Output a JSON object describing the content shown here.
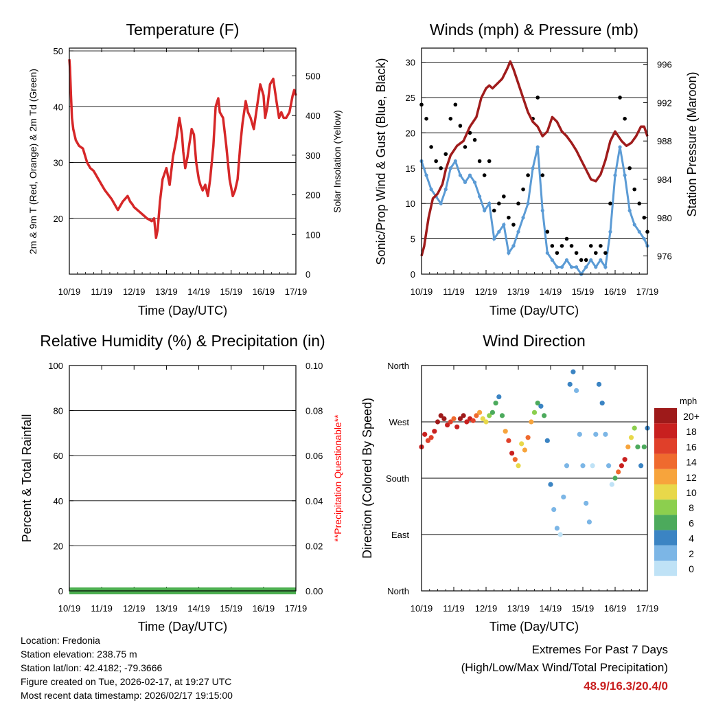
{
  "colors": {
    "temp": "#d62728",
    "wind": "#5b9bd5",
    "gust": "#000000",
    "pressure": "#a01c1c",
    "rh": "#4caf50",
    "questionable": "#ff0000",
    "extremes": "#c81e1e"
  },
  "x_tick_labels": [
    "10/19",
    "11/19",
    "12/19",
    "13/19",
    "14/19",
    "15/19",
    "16/19",
    "17/19"
  ],
  "x_axis_label": "Time (Day/UTC)",
  "chart_data": [
    {
      "id": "temperature",
      "type": "line",
      "title": "Temperature (F)",
      "xlabel": "Time (Day/UTC)",
      "ylabel": "2m & 9m T (Red, Orange) & 2m Td (Green)",
      "ylabel_right": "Solar Insolation (Yellow)",
      "xlim": [
        0,
        7
      ],
      "ylim": [
        10,
        50.5
      ],
      "yticks": [
        20,
        30,
        40,
        50
      ],
      "ylim_right": [
        0,
        570
      ],
      "yticks_right": [
        0,
        100,
        200,
        300,
        400,
        500
      ],
      "series": [
        {
          "name": "2m T",
          "x": [
            0,
            0.02,
            0.05,
            0.08,
            0.12,
            0.2,
            0.3,
            0.42,
            0.55,
            0.65,
            0.75,
            0.9,
            1.0,
            1.1,
            1.3,
            1.5,
            1.65,
            1.8,
            1.88,
            1.95,
            2.0,
            2.2,
            2.4,
            2.55,
            2.62,
            2.68,
            2.73,
            2.8,
            2.88,
            3.0,
            3.1,
            3.2,
            3.3,
            3.4,
            3.48,
            3.52,
            3.58,
            3.65,
            3.7,
            3.78,
            3.85,
            3.92,
            4.0,
            4.05,
            4.12,
            4.2,
            4.28,
            4.35,
            4.45,
            4.52,
            4.6,
            4.65,
            4.75,
            4.85,
            4.95,
            5.05,
            5.12,
            5.2,
            5.28,
            5.35,
            5.45,
            5.52,
            5.6,
            5.7,
            5.8,
            5.9,
            6.0,
            6.05,
            6.12,
            6.2,
            6.3,
            6.4,
            6.48,
            6.55,
            6.62,
            6.7,
            6.8,
            6.9,
            6.95,
            7.0
          ],
          "values": [
            48.5,
            47,
            42,
            38,
            36,
            34,
            33,
            32.5,
            30,
            29,
            28.5,
            27,
            26,
            25,
            23.5,
            21.5,
            23,
            24,
            23,
            22.5,
            22,
            21,
            20,
            19.5,
            20,
            16.5,
            18,
            23,
            27,
            29,
            26,
            31,
            34,
            38,
            35,
            32,
            29,
            31,
            33,
            36,
            35,
            30,
            27,
            26,
            25,
            26,
            24,
            27,
            33,
            40,
            41.5,
            39,
            38,
            33,
            27,
            24,
            25,
            27,
            33,
            37,
            41,
            39,
            38,
            36,
            40,
            44,
            42,
            38,
            40,
            44,
            45,
            41,
            38,
            39,
            38,
            38,
            39,
            42,
            43,
            42
          ]
        }
      ]
    },
    {
      "id": "winds",
      "type": "scatter",
      "title": "Winds (mph) & Pressure (mb)",
      "xlabel": "Time (Day/UTC)",
      "ylabel": "Sonic/Prop Wind & Gust (Blue, Black)",
      "ylabel_right": "Station Pressure (Maroon)",
      "xlim": [
        0,
        7
      ],
      "ylim": [
        0,
        32
      ],
      "yticks": [
        0,
        5,
        10,
        15,
        20,
        25,
        30
      ],
      "ylim_right": [
        974.1,
        997.7
      ],
      "yticks_right": [
        976,
        980,
        984,
        988,
        992,
        996
      ],
      "series": [
        {
          "name": "Gust",
          "x": [
            0,
            0.15,
            0.3,
            0.45,
            0.6,
            0.75,
            0.9,
            1.05,
            1.2,
            1.35,
            1.5,
            1.65,
            1.8,
            1.95,
            2.1,
            2.25,
            2.4,
            2.55,
            2.7,
            2.85,
            3.0,
            3.15,
            3.3,
            3.45,
            3.6,
            3.75,
            3.9,
            4.05,
            4.2,
            4.35,
            4.5,
            4.65,
            4.8,
            4.95,
            5.1,
            5.25,
            5.4,
            5.55,
            5.7,
            5.85,
            6.0,
            6.15,
            6.3,
            6.45,
            6.6,
            6.75,
            6.9,
            7.0
          ],
          "values": [
            24,
            22,
            18,
            16,
            15,
            17,
            22,
            24,
            21,
            18,
            20,
            19,
            16,
            14,
            16,
            9,
            10,
            11,
            8,
            7,
            10,
            12,
            14,
            22,
            25,
            14,
            6,
            4,
            3,
            4,
            5,
            4,
            3,
            2,
            2,
            4,
            3,
            4,
            3,
            10,
            20,
            25,
            22,
            15,
            12,
            10,
            8,
            6
          ]
        },
        {
          "name": "Wind",
          "x": [
            0,
            0.15,
            0.3,
            0.45,
            0.6,
            0.75,
            0.9,
            1.05,
            1.2,
            1.35,
            1.5,
            1.65,
            1.8,
            1.95,
            2.1,
            2.25,
            2.4,
            2.55,
            2.7,
            2.85,
            3.0,
            3.15,
            3.3,
            3.45,
            3.6,
            3.75,
            3.9,
            4.05,
            4.2,
            4.35,
            4.5,
            4.65,
            4.8,
            4.95,
            5.1,
            5.25,
            5.4,
            5.55,
            5.7,
            5.85,
            6.0,
            6.15,
            6.3,
            6.45,
            6.6,
            6.75,
            6.9,
            7.0
          ],
          "values": [
            16,
            14,
            12,
            11,
            10,
            12,
            15,
            16,
            14,
            13,
            14,
            13,
            11,
            9,
            10,
            5,
            6,
            7,
            3,
            4,
            6,
            8,
            10,
            15,
            18,
            9,
            3,
            2,
            1,
            1,
            2,
            1,
            1,
            0,
            1,
            2,
            1,
            2,
            1,
            6,
            14,
            18,
            14,
            9,
            7,
            6,
            5,
            4
          ]
        },
        {
          "name": "Station Pressure",
          "axis": "right",
          "x": [
            0,
            0.08,
            0.15,
            0.22,
            0.35,
            0.5,
            0.65,
            0.75,
            0.9,
            1.1,
            1.3,
            1.5,
            1.7,
            1.85,
            2.0,
            2.1,
            2.2,
            2.35,
            2.5,
            2.65,
            2.75,
            2.85,
            3.0,
            3.15,
            3.3,
            3.45,
            3.6,
            3.75,
            3.9,
            4.05,
            4.2,
            4.35,
            4.5,
            4.65,
            4.8,
            4.95,
            5.1,
            5.25,
            5.4,
            5.55,
            5.7,
            5.85,
            6.0,
            6.1,
            6.2,
            6.35,
            6.5,
            6.65,
            6.8,
            6.9,
            7.0
          ],
          "values": [
            976,
            977,
            978.5,
            980,
            982,
            982.5,
            983.5,
            985,
            986.5,
            987.5,
            988,
            989.5,
            990.5,
            992.5,
            993.5,
            993.8,
            993.5,
            994,
            994.5,
            995.5,
            996.3,
            995.5,
            994,
            992.5,
            991,
            990,
            989.5,
            988.5,
            989,
            990.5,
            990,
            989,
            988.5,
            987.8,
            987,
            986,
            985,
            984,
            983.8,
            984.5,
            986,
            988,
            989,
            988.5,
            988,
            987.5,
            987.8,
            988.5,
            989.5,
            989.5,
            988.5
          ]
        }
      ]
    },
    {
      "id": "humidity",
      "type": "area",
      "title": "Relative Humidity (%) & Precipitation (in)",
      "xlabel": "Time (Day/UTC)",
      "ylabel": "Percent & Total Rainfall",
      "ylabel_right": "**Precipitation Questionable**",
      "xlim": [
        0,
        7
      ],
      "ylim": [
        0,
        100
      ],
      "yticks": [
        0,
        20,
        40,
        60,
        80,
        100
      ],
      "ylim_right": [
        0,
        0.1
      ],
      "yticks_right": [
        "0.00",
        "0.02",
        "0.04",
        "0.06",
        "0.08",
        "0.10"
      ],
      "series": [
        {
          "name": "Precipitation",
          "x": [
            0,
            7
          ],
          "values": [
            0,
            0
          ]
        }
      ]
    },
    {
      "id": "wind_direction",
      "type": "scatter",
      "title": "Wind Direction",
      "xlabel": "Time (Day/UTC)",
      "ylabel": "Direction (Colored By Speed)",
      "xlim": [
        0,
        7
      ],
      "ylim": [
        0,
        360
      ],
      "ytick_labels": [
        "North",
        "East",
        "South",
        "West",
        "North"
      ],
      "colorbar": {
        "title": "mph",
        "labels": [
          "20+",
          "18",
          "16",
          "14",
          "12",
          "10",
          "8",
          "6",
          "4",
          "2",
          "0"
        ],
        "colors": [
          "#9e1a1a",
          "#c8201f",
          "#e0402a",
          "#ef6a2e",
          "#f7a43c",
          "#e8d84a",
          "#8ccf4e",
          "#4caa5c",
          "#3b84c3",
          "#7cb6e6",
          "#bfe2f6"
        ]
      },
      "series": [
        {
          "name": "Direction",
          "x": [
            0.0,
            0.1,
            0.2,
            0.3,
            0.4,
            0.5,
            0.6,
            0.7,
            0.8,
            0.9,
            1.0,
            1.1,
            1.2,
            1.3,
            1.4,
            1.5,
            1.6,
            1.7,
            1.8,
            1.9,
            2.0,
            2.1,
            2.2,
            2.3,
            2.4,
            2.5,
            2.6,
            2.7,
            2.8,
            2.9,
            3.0,
            3.1,
            3.2,
            3.3,
            3.4,
            3.5,
            3.6,
            3.7,
            3.8,
            3.9,
            4.0,
            4.1,
            4.2,
            4.3,
            4.4,
            4.5,
            4.6,
            4.7,
            4.8,
            4.9,
            5.0,
            5.1,
            5.2,
            5.3,
            5.4,
            5.5,
            5.6,
            5.7,
            5.8,
            5.9,
            6.0,
            6.1,
            6.2,
            6.3,
            6.4,
            6.5,
            6.6,
            6.7,
            6.8,
            6.9,
            7.0
          ],
          "values": [
            230,
            250,
            240,
            245,
            255,
            270,
            280,
            275,
            265,
            270,
            275,
            262,
            275,
            280,
            270,
            275,
            272,
            280,
            285,
            275,
            270,
            280,
            285,
            300,
            310,
            280,
            255,
            240,
            220,
            210,
            200,
            235,
            225,
            245,
            270,
            285,
            300,
            295,
            280,
            240,
            170,
            130,
            100,
            90,
            150,
            200,
            330,
            350,
            320,
            250,
            200,
            140,
            110,
            200,
            250,
            330,
            300,
            250,
            200,
            170,
            180,
            190,
            200,
            210,
            230,
            245,
            260,
            230,
            200,
            230,
            260
          ],
          "speed": [
            17,
            18,
            16,
            15,
            18,
            19,
            20,
            19,
            17,
            15,
            13,
            17,
            19,
            20,
            18,
            17,
            16,
            14,
            12,
            10,
            9,
            8,
            6,
            5,
            4,
            6,
            12,
            16,
            18,
            13,
            10,
            9,
            11,
            14,
            12,
            8,
            5,
            4,
            6,
            3,
            3,
            2,
            1,
            0,
            1,
            2,
            3,
            4,
            2,
            1,
            1,
            2,
            1,
            0,
            1,
            3,
            4,
            2,
            1,
            0,
            5,
            14,
            18,
            17,
            12,
            9,
            7,
            5,
            4,
            5,
            4
          ]
        }
      ]
    }
  ],
  "info": {
    "location": "Location: Fredonia",
    "elevation": "Station elevation: 238.75 m",
    "latlon": "Station lat/lon: 42.4182; -79.3666",
    "created": "Figure created on Tue, 2026-02-17, at 19:27 UTC",
    "recent": "Most recent data timestamp: 2026/02/17 19:15:00"
  },
  "extremes": {
    "title": "Extremes For Past 7 Days",
    "subtitle": "(High/Low/Max Wind/Total Precipitation)",
    "values": "48.9/16.3/20.4/0"
  }
}
